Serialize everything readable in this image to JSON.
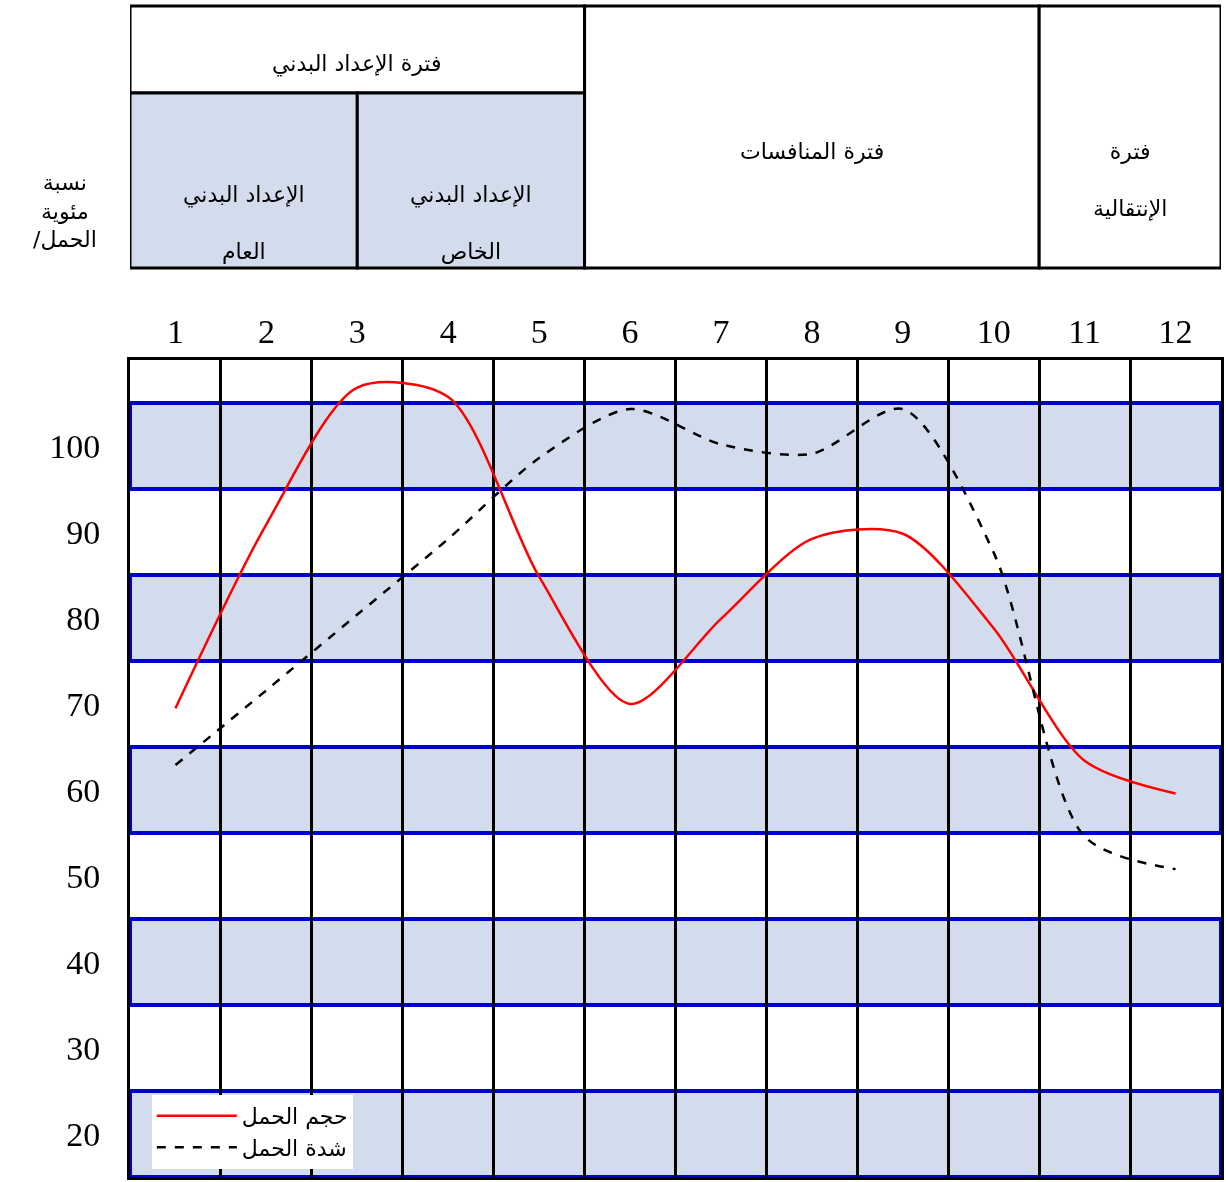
{
  "chart_data": {
    "type": "line",
    "annotations": [
      "نسبة مئوية /الحمل",
      "فترة الإعداد البدني",
      "الإعداد البدني العام",
      "الإعداد البدني الخاص",
      "فترة المنافسات",
      "فترة الإنتقالية"
    ],
    "x": [
      1,
      2,
      3,
      4,
      5,
      6,
      7,
      8,
      9,
      10,
      11,
      12
    ],
    "xlim": [
      0.5,
      12.5
    ],
    "xticks": [
      1,
      2,
      3,
      4,
      5,
      6,
      7,
      8,
      9,
      10,
      11,
      12
    ],
    "ylim": [
      15,
      110
    ],
    "yticks": [
      20,
      30,
      40,
      50,
      60,
      70,
      80,
      90,
      100
    ],
    "series": [
      {
        "name": "حجم الحمل",
        "color": "#ff0000",
        "line_style": "solid",
        "values": [
          69.5,
          90.9,
          106.8,
          105.7,
          84.8,
          70,
          79.9,
          89.2,
          89.8,
          78.8,
          63.4,
          59.6
        ]
      },
      {
        "name": "شدة الحمل",
        "color": "#000000",
        "line_style": "dashed",
        "values": [
          62.9,
          71.6,
          80.4,
          89.2,
          98.6,
          104.3,
          100.2,
          99.1,
          104.3,
          87.6,
          54.6,
          50.8
        ]
      }
    ],
    "bands": [
      {
        "axis": "y",
        "from": 95,
        "to": 105,
        "color": "#d3dcec"
      },
      {
        "axis": "y",
        "from": 75,
        "to": 85,
        "color": "#d3dcec"
      },
      {
        "axis": "y",
        "from": 55,
        "to": 65,
        "color": "#d3dcec"
      },
      {
        "axis": "y",
        "from": 35,
        "to": 45,
        "color": "#d3dcec"
      },
      {
        "axis": "y",
        "from": 15,
        "to": 25,
        "color": "#d3dcec"
      }
    ],
    "grid": "x",
    "legend": "bottom left",
    "marker": "none"
  }
}
